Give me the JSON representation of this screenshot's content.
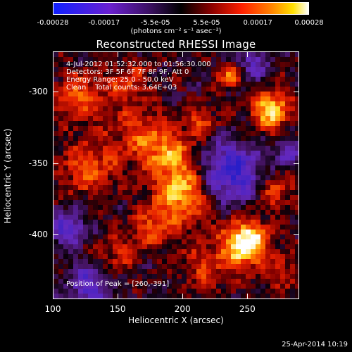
{
  "colorbar": {
    "ticks": [
      "-0.00028",
      "-0.00017",
      "-5.5e-05",
      "5.5e-05",
      "0.00017",
      "0.00028"
    ],
    "units": "(photons cm⁻² s⁻¹ asec⁻²)"
  },
  "title": "Reconstructed RHESSI Image",
  "annotations": {
    "line1": "4-Jul-2012 01:52:32.000 to 01:56:30.000",
    "line2": "Detectors: 3F 5F 6F 7F 8F 9F, Att 0",
    "line3": "Energy Range: 25.0 - 50.0 keV",
    "line4": "Clean    Total counts: 3.64E+03",
    "peak": "Position of Peak = [260,-391]"
  },
  "axes": {
    "xlabel": "Heliocentric X (arcsec)",
    "ylabel": "Heliocentric Y (arcsec)",
    "xticks": [
      "100",
      "150",
      "200",
      "250"
    ],
    "yticks": [
      "-300",
      "-350",
      "-400"
    ],
    "xlim": [
      100,
      290
    ],
    "ylim": [
      -445,
      -272
    ]
  },
  "footer": {
    "date": "25-Apr-2014 10:19"
  }
}
